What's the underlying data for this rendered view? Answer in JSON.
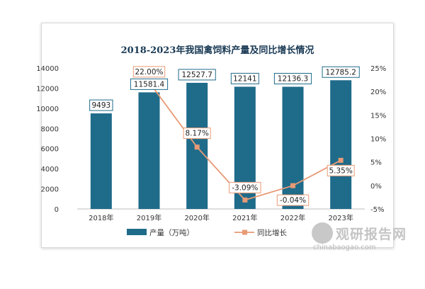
{
  "chart_data": {
    "type": "bar",
    "title": "2018-2023年我国禽饲料产量及同比增长情况",
    "categories": [
      "2018年",
      "2019年",
      "2020年",
      "2021年",
      "2022年",
      "2023年"
    ],
    "series": [
      {
        "name": "产量（万吨）",
        "type": "bar",
        "axis": "left",
        "values": [
          9493,
          11581.4,
          12527.7,
          12141,
          12136.3,
          12785.2
        ],
        "labels": [
          "9493",
          "11581.4",
          "12527.7",
          "12141",
          "12136.3",
          "12785.2"
        ],
        "color": "#1f6b8a"
      },
      {
        "name": "同比增长",
        "type": "line",
        "axis": "right",
        "values": [
          null,
          22.0,
          8.17,
          -3.09,
          -0.04,
          5.35
        ],
        "labels": [
          "",
          "22.00%",
          "8.17%",
          "-3.09%",
          "-0.04%",
          "5.35%"
        ],
        "color": "#e89a75"
      }
    ],
    "y_left": {
      "min": 0,
      "max": 14000,
      "ticks": [
        "0",
        "2000",
        "4000",
        "6000",
        "8000",
        "10000",
        "12000",
        "14000"
      ]
    },
    "y_right": {
      "min": -5,
      "max": 25,
      "ticks": [
        "-5%",
        "0%",
        "5%",
        "10%",
        "15%",
        "20%",
        "25%"
      ]
    },
    "grid": false,
    "legend": "bottom"
  },
  "watermark": {
    "name": "观研报告网",
    "url": "chinabaogao.com"
  }
}
